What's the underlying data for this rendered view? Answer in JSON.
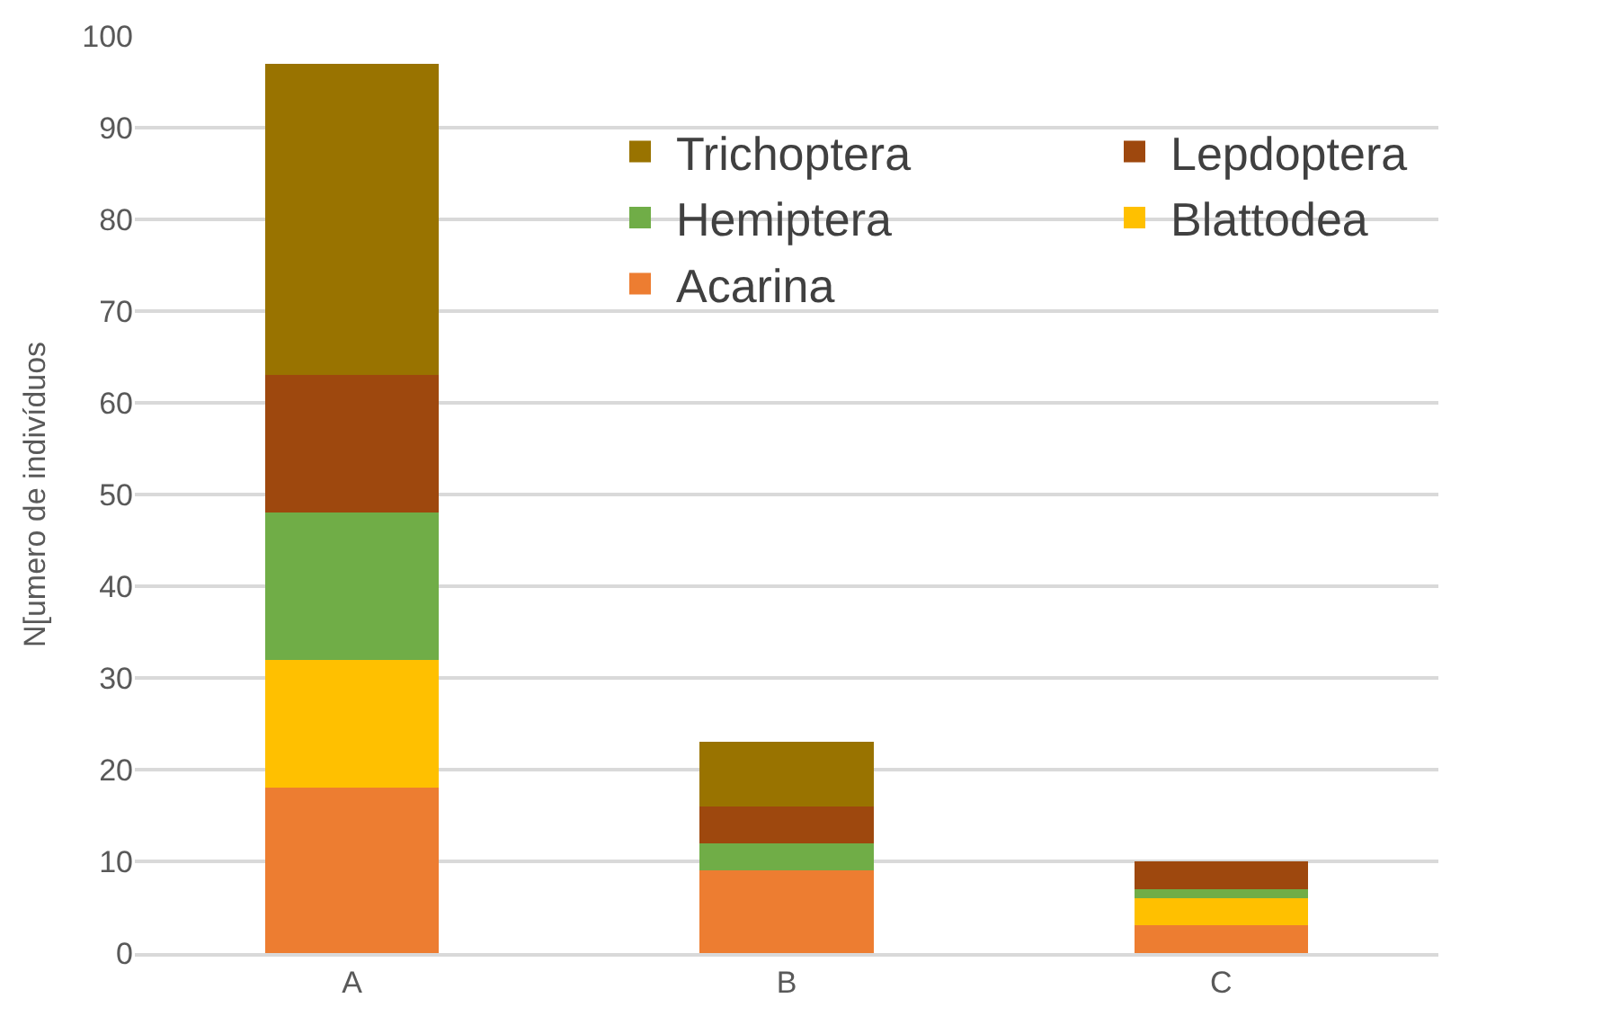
{
  "chart_data": {
    "type": "bar",
    "stacked": true,
    "ylabel": "N[umero de indivíduos",
    "categories": [
      "A",
      "B",
      "C"
    ],
    "series": [
      {
        "name": "Acarina",
        "color": "#ed7d31",
        "values": [
          18,
          9,
          3
        ]
      },
      {
        "name": "Blattodea",
        "color": "#ffc000",
        "values": [
          14,
          0,
          3
        ]
      },
      {
        "name": "Hemiptera",
        "color": "#70ad47",
        "values": [
          16,
          3,
          1
        ]
      },
      {
        "name": "Lepdoptera",
        "color": "#9e480e",
        "values": [
          15,
          4,
          3
        ]
      },
      {
        "name": "Trichoptera",
        "color": "#997300",
        "values": [
          34,
          7,
          0
        ]
      }
    ],
    "ylim": [
      0,
      100
    ],
    "yticks": [
      0,
      10,
      20,
      30,
      40,
      50,
      60,
      70,
      80,
      90,
      100
    ],
    "grid": "y",
    "legend": "top right"
  }
}
